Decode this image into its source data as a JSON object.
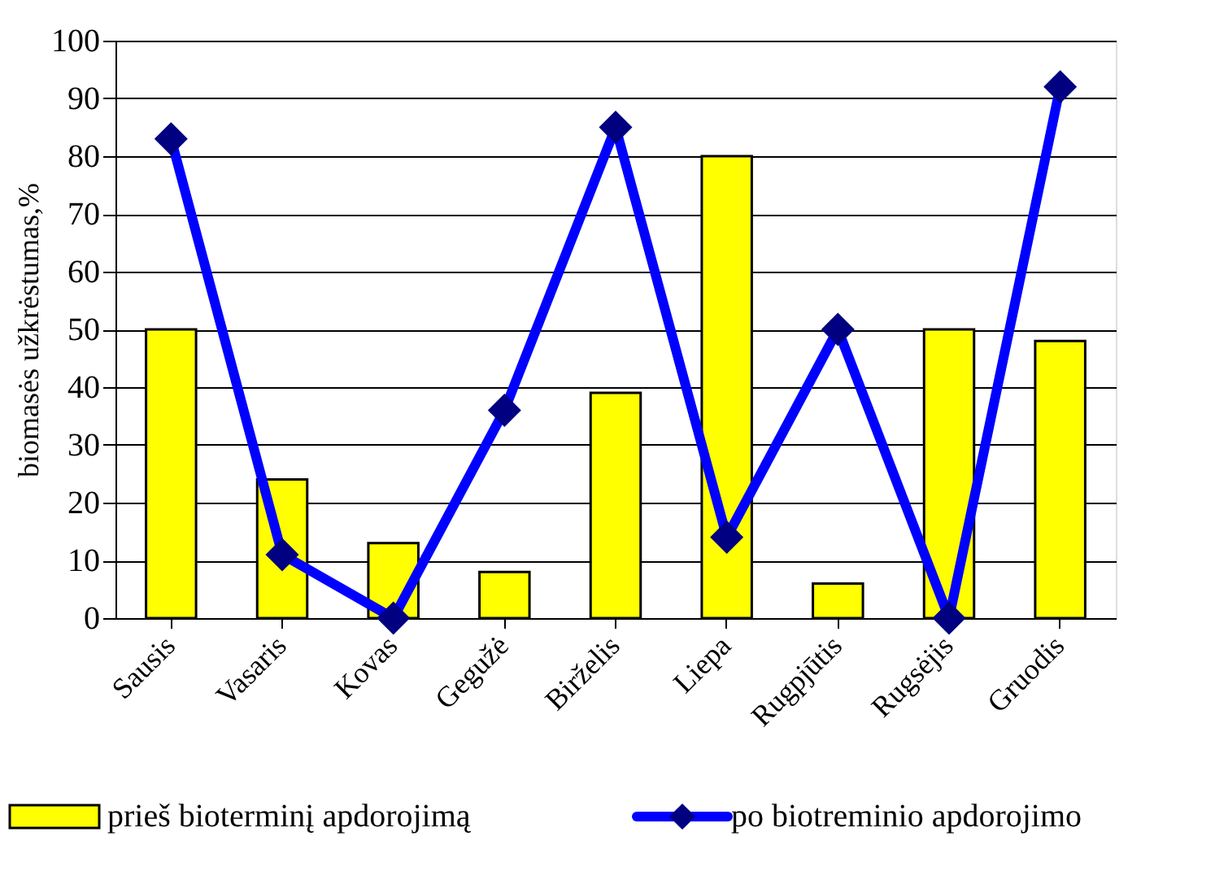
{
  "chart_data": {
    "type": "bar",
    "ylabel": "biomasės užkrėstumas,%",
    "categories": [
      "Sausis",
      "Vasaris",
      "Kovas",
      "Gegužė",
      "Birželis",
      "Liepa",
      "Rugpjūtis",
      "Rugsėjis",
      "Gruodis"
    ],
    "series": [
      {
        "name": "prieš bioterminį apdorojimą",
        "color": "#ffff00",
        "values": [
          50,
          24,
          13,
          8,
          39,
          80,
          6,
          50,
          48
        ]
      },
      {
        "name": "po biotreminio apdorojimo",
        "type": "line",
        "color": "#0000ff",
        "marker": "diamond",
        "values": [
          83,
          11,
          0,
          36,
          85,
          14,
          50,
          0,
          92
        ]
      }
    ],
    "ylim": [
      0,
      100
    ],
    "yticks": [
      0,
      10,
      20,
      30,
      40,
      50,
      60,
      70,
      80,
      90,
      100
    ],
    "grid": "y",
    "legend": "bottom"
  }
}
